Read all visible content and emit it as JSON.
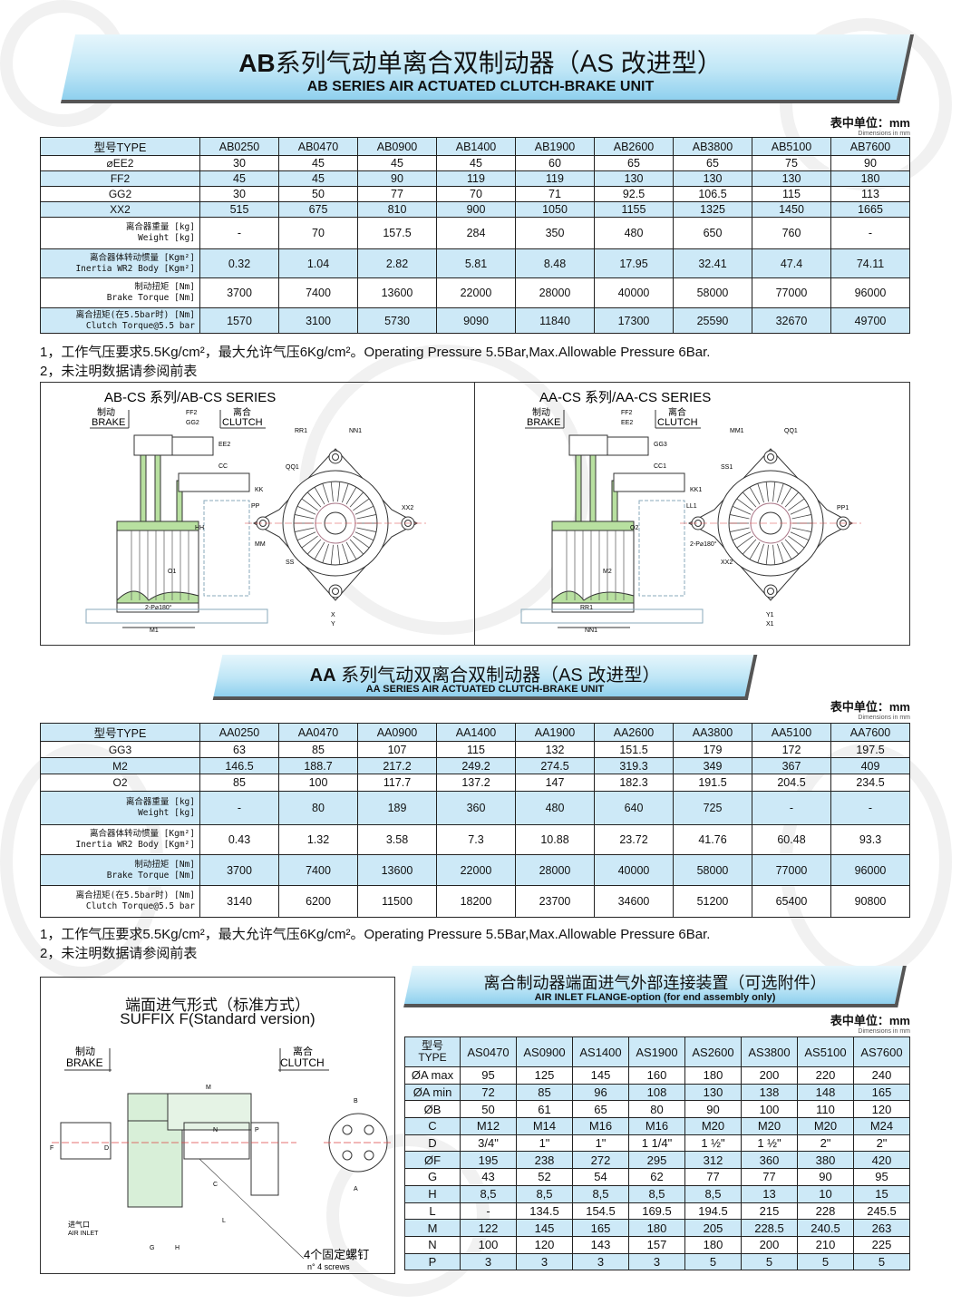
{
  "watermark": "Tenord",
  "colors": {
    "table_blue": "#cde9f7",
    "banner_blue": "#8fd0ee",
    "drawing_green": "#b8e0a0"
  },
  "ab_section": {
    "title_prefix": "AB",
    "title_cn": "系列气动单离合双制动器（AS 改进型）",
    "title_en": "AB SERIES AIR ACTUATED CLUTCH-BRAKE UNIT",
    "units_cn": "表中单位：mm",
    "units_en": "Dimensions in mm",
    "table": {
      "header": [
        "型号TYPE",
        "AB0250",
        "AB0470",
        "AB0900",
        "AB1400",
        "AB1900",
        "AB2600",
        "AB3800",
        "AB5100",
        "AB7600"
      ],
      "rows": [
        {
          "label": "⌀EE2",
          "values": [
            "30",
            "45",
            "45",
            "45",
            "60",
            "65",
            "65",
            "75",
            "90"
          ]
        },
        {
          "label": "FF2",
          "values": [
            "45",
            "45",
            "90",
            "119",
            "119",
            "130",
            "130",
            "130",
            "180"
          ]
        },
        {
          "label": "GG2",
          "values": [
            "30",
            "50",
            "77",
            "70",
            "71",
            "92.5",
            "106.5",
            "115",
            "113"
          ]
        },
        {
          "label": "XX2",
          "values": [
            "515",
            "675",
            "810",
            "900",
            "1050",
            "1155",
            "1325",
            "1450",
            "1665"
          ]
        },
        {
          "label": "离合器重量 [kg]",
          "label2": "Weight [kg]",
          "values": [
            "-",
            "70",
            "157.5",
            "284",
            "350",
            "480",
            "650",
            "760",
            "-"
          ]
        },
        {
          "label": "离合器体转动惯量 [Kgm²]",
          "label2": "Inertia WR2 Body [Kgm²]",
          "values": [
            "0.32",
            "1.04",
            "2.82",
            "5.81",
            "8.48",
            "17.95",
            "32.41",
            "47.4",
            "74.11"
          ]
        },
        {
          "label": "制动扭矩 [Nm]",
          "label2": "Brake Torque [Nm]",
          "values": [
            "3700",
            "7400",
            "13600",
            "22000",
            "28000",
            "40000",
            "58000",
            "77000",
            "96000"
          ]
        },
        {
          "label": "离合扭矩(在5.5bar时) [Nm]",
          "label2": "Clutch Torque@5.5 bar",
          "values": [
            "1570",
            "3100",
            "5730",
            "9090",
            "11840",
            "17300",
            "25590",
            "32670",
            "49700"
          ]
        }
      ]
    },
    "notes": [
      "1，工作气压要求5.5Kg/cm²，最大允许气压6Kg/cm²。Operating Pressure 5.5Bar,Max.Allowable Pressure 6Bar.",
      "2，未注明数据请参阅前表"
    ]
  },
  "drawings_top": {
    "left": {
      "title": "AB-CS 系列/AB-CS  SERIES",
      "brake_cn": "制动",
      "brake_en": "BRAKE",
      "clutch_cn": "离合",
      "clutch_en": "CLUTCH",
      "dims": [
        "FF2",
        "GG2",
        "EE2",
        "CC",
        "KK",
        "PP",
        "HH",
        "MM",
        "O1",
        "2-P⌀180°",
        "M1",
        "RR1",
        "NN1",
        "QQ1",
        "XX2",
        "SS",
        "X",
        "Y"
      ]
    },
    "right": {
      "title": "AA-CS 系列/AA-CS  SERIES",
      "brake_cn": "制动",
      "brake_en": "BRAKE",
      "clutch_cn": "离合",
      "clutch_en": "CLUTCH",
      "dims": [
        "FF2",
        "EE2",
        "GG3",
        "CC1",
        "KK1",
        "LL1",
        "O2",
        "2-P⌀180°",
        "M2",
        "RR1",
        "NN1",
        "MM1",
        "QQ1",
        "SS1",
        "PP1",
        "XX2",
        "Y1",
        "X1"
      ]
    }
  },
  "aa_section": {
    "title_prefix": "AA",
    "title_cn": "系列气动双离合双制动器（AS 改进型）",
    "title_en": "AA SERIES AIR ACTUATED CLUTCH-BRAKE UNIT",
    "units_cn": "表中单位：mm",
    "units_en": "Dimensions in mm",
    "table": {
      "header": [
        "型号TYPE",
        "AA0250",
        "AA0470",
        "AA0900",
        "AA1400",
        "AA1900",
        "AA2600",
        "AA3800",
        "AA5100",
        "AA7600"
      ],
      "rows": [
        {
          "label": "GG3",
          "values": [
            "63",
            "85",
            "107",
            "115",
            "132",
            "151.5",
            "179",
            "172",
            "197.5"
          ]
        },
        {
          "label": "M2",
          "values": [
            "146.5",
            "188.7",
            "217.2",
            "249.2",
            "274.5",
            "319.3",
            "349",
            "367",
            "409"
          ]
        },
        {
          "label": "O2",
          "values": [
            "85",
            "100",
            "117.7",
            "137.2",
            "147",
            "182.3",
            "191.5",
            "204.5",
            "234.5"
          ]
        },
        {
          "label": "离合器重量 [kg]",
          "label2": "Weight [kg]",
          "values": [
            "-",
            "80",
            "189",
            "360",
            "480",
            "640",
            "725",
            "-",
            "-"
          ]
        },
        {
          "label": "离合器体转动惯量 [Kgm²]",
          "label2": "Inertia WR2 Body [Kgm²]",
          "values": [
            "0.43",
            "1.32",
            "3.58",
            "7.3",
            "10.88",
            "23.72",
            "41.76",
            "60.48",
            "93.3"
          ]
        },
        {
          "label": "制动扭矩 [Nm]",
          "label2": "Brake Torque [Nm]",
          "values": [
            "3700",
            "7400",
            "13600",
            "22000",
            "28000",
            "40000",
            "58000",
            "77000",
            "96000"
          ]
        },
        {
          "label": "离合扭矩(在5.5bar时) [Nm]",
          "label2": "Clutch Torque@5.5 bar",
          "values": [
            "3140",
            "6200",
            "11500",
            "18200",
            "23700",
            "34600",
            "51200",
            "65400",
            "90800"
          ]
        }
      ]
    },
    "notes": [
      "1，工作气压要求5.5Kg/cm²，最大允许气压6Kg/cm²。Operating Pressure 5.5Bar,Max.Allowable Pressure 6Bar.",
      "2，未注明数据请参阅前表"
    ]
  },
  "suffix_drawing": {
    "title_cn": "端面进气形式（标准方式）",
    "title_en": "SUFFIX F(Standard  version)",
    "brake_cn": "制动",
    "brake_en": "BRAKE",
    "clutch_cn": "离合",
    "clutch_en": "CLUTCH",
    "air_cn": "进气口",
    "air_en": "AIR  INLET",
    "screws_cn": "4个固定螺钉",
    "screws_en": "n° 4  screws",
    "dims": [
      "M",
      "N",
      "P",
      "F",
      "D",
      "C",
      "L",
      "G",
      "H",
      "B",
      "A"
    ]
  },
  "as_section": {
    "title_cn": "离合制动器端面进气外部连接装置（可选附件）",
    "title_en": "AIR INLET FLANGE-option (for end assembly only)",
    "units_cn": "表中单位：mm",
    "units_en": "Dimensions in mm",
    "table": {
      "header_cn": "型号",
      "header_en": "TYPE",
      "header": [
        "AS0470",
        "AS0900",
        "AS1400",
        "AS1900",
        "AS2600",
        "AS3800",
        "AS5100",
        "AS7600"
      ],
      "rows": [
        {
          "label": "ØA max",
          "values": [
            "95",
            "125",
            "145",
            "160",
            "180",
            "200",
            "220",
            "240"
          ]
        },
        {
          "label": "ØA min",
          "values": [
            "72",
            "85",
            "96",
            "108",
            "130",
            "138",
            "148",
            "165"
          ]
        },
        {
          "label": "ØB",
          "values": [
            "50",
            "61",
            "65",
            "80",
            "90",
            "100",
            "110",
            "120"
          ]
        },
        {
          "label": "C",
          "values": [
            "M12",
            "M14",
            "M16",
            "M16",
            "M20",
            "M20",
            "M20",
            "M24"
          ]
        },
        {
          "label": "D",
          "values": [
            "3/4\"",
            "1\"",
            "1\"",
            "1 1/4\"",
            "1 ½\"",
            "1 ½\"",
            "2\"",
            "2\""
          ]
        },
        {
          "label": "ØF",
          "values": [
            "195",
            "238",
            "272",
            "295",
            "312",
            "360",
            "380",
            "420"
          ]
        },
        {
          "label": "G",
          "values": [
            "43",
            "52",
            "54",
            "62",
            "77",
            "77",
            "90",
            "95"
          ]
        },
        {
          "label": "H",
          "values": [
            "8,5",
            "8,5",
            "8,5",
            "8,5",
            "8,5",
            "13",
            "10",
            "15"
          ]
        },
        {
          "label": "L",
          "values": [
            "-",
            "134.5",
            "154.5",
            "169.5",
            "194.5",
            "215",
            "228",
            "245.5"
          ]
        },
        {
          "label": "M",
          "values": [
            "122",
            "145",
            "165",
            "180",
            "205",
            "228.5",
            "240.5",
            "263"
          ]
        },
        {
          "label": "N",
          "values": [
            "100",
            "120",
            "143",
            "157",
            "180",
            "200",
            "210",
            "225"
          ]
        },
        {
          "label": "P",
          "values": [
            "3",
            "3",
            "3",
            "3",
            "5",
            "5",
            "5",
            "5"
          ]
        }
      ]
    }
  }
}
